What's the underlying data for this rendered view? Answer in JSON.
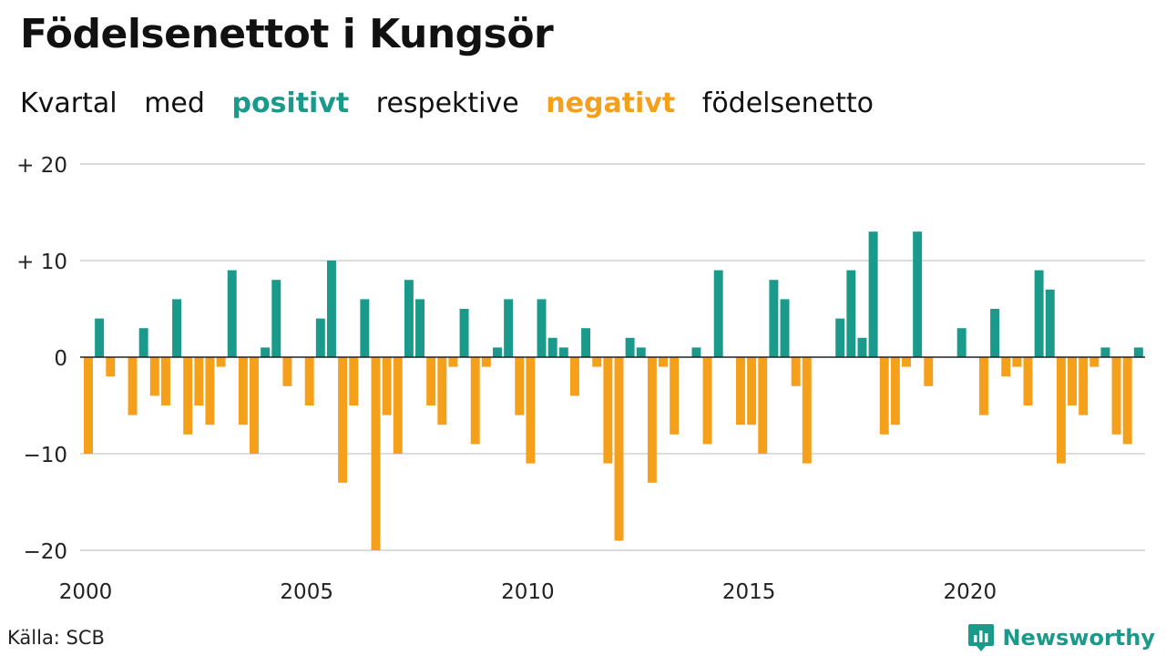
{
  "title": "Födelsenettot i Kungsör",
  "subtitle": {
    "part1": "Kvartal",
    "part2": "med",
    "positive_word": "positivt",
    "part3": "respektive",
    "negative_word": "negativt",
    "part4": "födelsenetto"
  },
  "source": "Källa: SCB",
  "brand": {
    "name": "Newsworthy",
    "icon": "newsworthy-logo-icon"
  },
  "colors": {
    "positive": "#1a9a8a",
    "negative": "#f5a01a",
    "grid": "#dddddd",
    "zero_line": "#222222"
  },
  "chart_data": {
    "type": "bar",
    "x_unit": "quarter",
    "start": "2000 Q1",
    "x_ticks": [
      "2000",
      "2005",
      "2010",
      "2015",
      "2020"
    ],
    "y_ticks": [
      "+ 20",
      "+ 10",
      "0",
      "−10",
      "−20"
    ],
    "y_tick_values": [
      20,
      10,
      0,
      -10,
      -20
    ],
    "ylim": [
      -20,
      20
    ],
    "grid": true,
    "values": [
      -10,
      4,
      -2,
      0,
      -6,
      3,
      -4,
      -5,
      6,
      -8,
      -5,
      -7,
      -1,
      9,
      -7,
      -10,
      1,
      8,
      -3,
      0,
      -5,
      4,
      10,
      -13,
      -5,
      6,
      -20,
      -6,
      -10,
      8,
      6,
      -5,
      -7,
      -1,
      5,
      -9,
      -1,
      1,
      6,
      -6,
      -11,
      6,
      2,
      1,
      -4,
      3,
      -1,
      -11,
      -19,
      2,
      1,
      -13,
      -1,
      -8,
      0,
      1,
      -9,
      9,
      0,
      -7,
      -7,
      -10,
      8,
      6,
      -3,
      -11,
      0,
      0,
      4,
      9,
      2,
      13,
      -8,
      -7,
      -1,
      13,
      -3,
      0,
      0,
      3,
      0,
      -6,
      5,
      -2,
      -1,
      -5,
      9,
      7,
      -11,
      -5,
      -6,
      -1,
      1,
      -8,
      -9,
      1
    ]
  }
}
